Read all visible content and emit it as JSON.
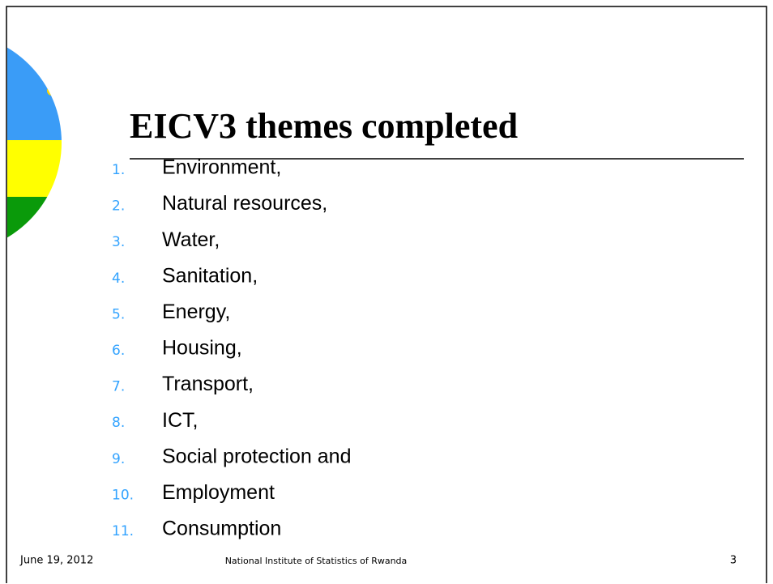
{
  "slide": {
    "title": "EICV3 themes completed",
    "items": [
      {
        "number": "1.",
        "text": "Environment,"
      },
      {
        "number": "2.",
        "text": "Natural resources,"
      },
      {
        "number": "3.",
        "text": "Water,"
      },
      {
        "number": "4.",
        "text": "Sanitation,"
      },
      {
        "number": "5.",
        "text": "Energy,"
      },
      {
        "number": "6.",
        "text": "Housing,"
      },
      {
        "number": "7.",
        "text": "Transport,"
      },
      {
        "number": "8.",
        "text": "ICT,"
      },
      {
        "number": "9.",
        "text": "Social protection and"
      },
      {
        "number": "10.",
        "text": "Employment"
      },
      {
        "number": "11.",
        "text": "Consumption"
      }
    ],
    "footer": {
      "date": "June 19, 2012",
      "organization": "National Institute of Statistics of Rwanda",
      "page": "3"
    }
  }
}
